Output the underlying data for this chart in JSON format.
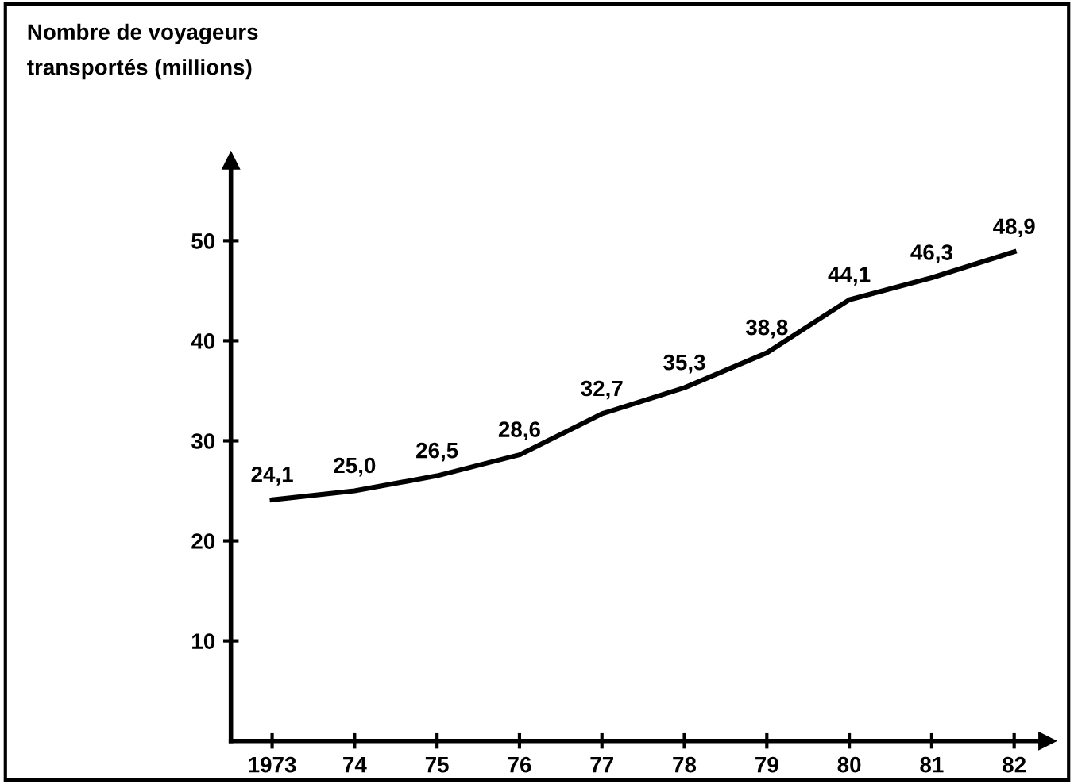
{
  "chart_data": {
    "type": "line",
    "ylabel": "Nombre de voyageurs\ntransportés (millions)",
    "categories": [
      "1973",
      "74",
      "75",
      "76",
      "77",
      "78",
      "79",
      "80",
      "81",
      "82"
    ],
    "series": [
      {
        "color": "#000000",
        "values": [
          24.1,
          25.0,
          26.5,
          28.6,
          32.7,
          35.3,
          38.8,
          44.1,
          46.3,
          48.9
        ],
        "value_labels": [
          "24,1",
          "25,0",
          "26,5",
          "28,6",
          "32,7",
          "35,3",
          "38,8",
          "44,1",
          "46,3",
          "48,9"
        ]
      }
    ],
    "ylim": [
      0,
      58
    ],
    "yticks": [
      10,
      20,
      30,
      40,
      50
    ],
    "grid": false,
    "legend": false,
    "marker": "none",
    "line_style": "solid"
  }
}
